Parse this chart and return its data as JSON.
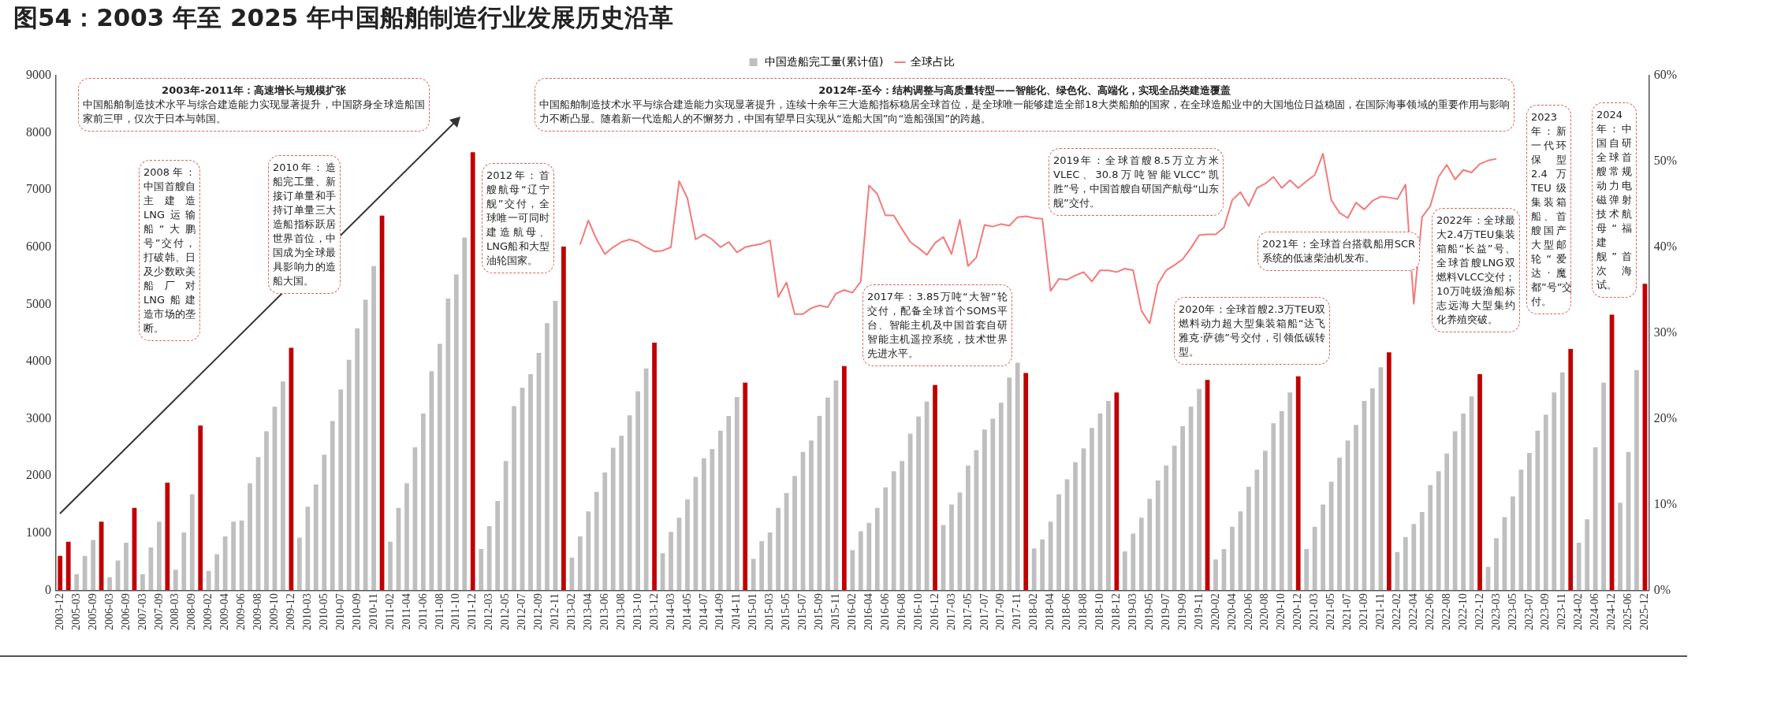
{
  "chart_data": {
    "type": "bar",
    "title": "图54：2003 年至 2025 年中国船舶制造行业发展历史沿革",
    "categories": [
      "2003-12",
      null,
      "2005-03",
      null,
      "2005-09",
      null,
      "2006-03",
      null,
      "2006-09",
      null,
      "2007-03",
      null,
      "2007-09",
      null,
      "2008-03",
      null,
      "2008-09",
      null,
      "2009-02",
      null,
      "2009-04",
      null,
      "2009-06",
      null,
      "2009-08",
      null,
      "2009-10",
      null,
      "2009-12",
      null,
      "2010-03",
      null,
      "2010-05",
      null,
      "2010-07",
      null,
      "2010-09",
      null,
      "2010-11",
      null,
      "2011-02",
      null,
      "2011-04",
      null,
      "2011-06",
      null,
      "2011-08",
      null,
      "2011-10",
      null,
      "2011-12",
      null,
      "2012-03",
      null,
      "2012-05",
      null,
      "2012-07",
      null,
      "2012-09",
      null,
      "2012-11",
      null,
      "2013-02",
      null,
      "2013-04",
      null,
      "2013-06",
      null,
      "2013-08",
      null,
      "2013-10",
      null,
      "2013-12",
      null,
      "2014-03",
      null,
      "2014-05",
      null,
      "2014-07",
      null,
      "2014-09",
      null,
      "2014-11",
      null,
      "2015-01",
      null,
      "2015-03",
      null,
      "2015-05",
      null,
      "2015-07",
      null,
      "2015-09",
      null,
      "2015-11",
      null,
      "2016-02",
      null,
      "2016-04",
      null,
      "2016-06",
      null,
      "2016-08",
      null,
      "2016-10",
      null,
      "2016-12",
      null,
      "2017-03",
      null,
      "2017-05",
      null,
      "2017-07",
      null,
      "2017-09",
      null,
      "2017-11",
      null,
      "2018-02",
      null,
      "2018-04",
      null,
      "2018-06",
      null,
      "2018-08",
      null,
      "2018-10",
      null,
      "2018-12",
      null,
      "2019-03",
      null,
      "2019-05",
      null,
      "2019-07",
      null,
      "2019-09",
      null,
      "2019-11",
      null,
      "2020-02",
      null,
      "2020-04",
      null,
      "2020-06",
      null,
      "2020-08",
      null,
      "2020-10",
      null,
      "2020-12",
      null,
      "2021-03",
      null,
      "2021-05",
      null,
      "2021-07",
      null,
      "2021-09",
      null,
      "2021-11",
      null,
      "2022-02",
      null,
      "2022-04",
      null,
      "2022-06",
      null,
      "2022-08",
      null,
      "2022-10",
      null,
      "2022-12",
      null,
      "2023-03",
      null,
      "2023-05",
      null,
      "2023-07",
      null,
      "2023-09",
      null,
      "2023-11",
      null,
      "2024-02",
      null,
      "2024-06",
      null,
      "2024-12",
      null,
      "2025-06",
      null,
      "2025-12"
    ],
    "series": [
      {
        "name": "中国造船完工量(累计值)",
        "color": "#bfbfbf",
        "values": [
          600,
          850,
          280,
          600,
          880,
          1200,
          230,
          520,
          830,
          1440,
          280,
          750,
          1200,
          1880,
          360,
          1010,
          1680,
          2880,
          340,
          630,
          940,
          1200,
          1220,
          1870,
          2330,
          2780,
          3210,
          3650,
          4240,
          920,
          1460,
          1850,
          2370,
          2960,
          3510,
          4030,
          4580,
          5080,
          5670,
          6550,
          850,
          1440,
          1870,
          2500,
          3090,
          3830,
          4310,
          5100,
          5520,
          6170,
          7660,
          720,
          1120,
          1560,
          2260,
          3220,
          3540,
          3780,
          4150,
          4670,
          5060,
          6010,
          570,
          940,
          1380,
          1720,
          2060,
          2490,
          2700,
          3060,
          3480,
          3880,
          4330,
          650,
          1020,
          1270,
          1590,
          1980,
          2310,
          2470,
          2790,
          3050,
          3380,
          3630,
          550,
          860,
          1010,
          1440,
          1700,
          2000,
          2420,
          2620,
          3050,
          3370,
          3670,
          3920,
          700,
          1030,
          1180,
          1440,
          1800,
          2080,
          2260,
          2740,
          3040,
          3300,
          3590,
          1140,
          1500,
          1710,
          2180,
          2450,
          2810,
          3000,
          3280,
          3720,
          3980,
          3800,
          730,
          890,
          1200,
          1680,
          1940,
          2240,
          2480,
          2840,
          3090,
          3310,
          3460,
          680,
          990,
          1270,
          1600,
          1920,
          2180,
          2530,
          2870,
          3210,
          3520,
          3680,
          540,
          720,
          1110,
          1380,
          1810,
          2110,
          2440,
          2920,
          3130,
          3460,
          3740,
          720,
          1110,
          1500,
          1900,
          2320,
          2620,
          2890,
          3310,
          3530,
          3900,
          4160,
          670,
          930,
          1160,
          1370,
          1840,
          2080,
          2390,
          2780,
          3090,
          3390,
          3780,
          410,
          910,
          1280,
          1640,
          2110,
          2400,
          2790,
          3070,
          3460,
          3810,
          4220,
          830,
          1240,
          2500,
          3630,
          4820,
          1530,
          2420,
          3850,
          5360
        ],
        "colors": [
          "#c00000",
          "#c00000",
          "#bfbfbf",
          "#bfbfbf",
          "#bfbfbf",
          "#c00000",
          "#bfbfbf",
          "#bfbfbf",
          "#bfbfbf",
          "#c00000",
          "#bfbfbf",
          "#bfbfbf",
          "#bfbfbf",
          "#c00000",
          "#bfbfbf",
          "#bfbfbf",
          "#bfbfbf",
          "#c00000",
          "#bfbfbf",
          "#bfbfbf",
          "#bfbfbf",
          "#bfbfbf",
          "#bfbfbf",
          "#bfbfbf",
          "#bfbfbf",
          "#bfbfbf",
          "#bfbfbf",
          "#bfbfbf",
          "#c00000",
          "#bfbfbf",
          "#bfbfbf",
          "#bfbfbf",
          "#bfbfbf",
          "#bfbfbf",
          "#bfbfbf",
          "#bfbfbf",
          "#bfbfbf",
          "#bfbfbf",
          "#bfbfbf",
          "#c00000",
          "#bfbfbf",
          "#bfbfbf",
          "#bfbfbf",
          "#bfbfbf",
          "#bfbfbf",
          "#bfbfbf",
          "#bfbfbf",
          "#bfbfbf",
          "#bfbfbf",
          "#bfbfbf",
          "#c00000",
          "#bfbfbf",
          "#bfbfbf",
          "#bfbfbf",
          "#bfbfbf",
          "#bfbfbf",
          "#bfbfbf",
          "#bfbfbf",
          "#bfbfbf",
          "#bfbfbf",
          "#bfbfbf",
          "#c00000",
          "#bfbfbf",
          "#bfbfbf",
          "#bfbfbf",
          "#bfbfbf",
          "#bfbfbf",
          "#bfbfbf",
          "#bfbfbf",
          "#bfbfbf",
          "#bfbfbf",
          "#bfbfbf",
          "#c00000",
          "#bfbfbf",
          "#bfbfbf",
          "#bfbfbf",
          "#bfbfbf",
          "#bfbfbf",
          "#bfbfbf",
          "#bfbfbf",
          "#bfbfbf",
          "#bfbfbf",
          "#bfbfbf",
          "#c00000",
          "#bfbfbf",
          "#bfbfbf",
          "#bfbfbf",
          "#bfbfbf",
          "#bfbfbf",
          "#bfbfbf",
          "#bfbfbf",
          "#bfbfbf",
          "#bfbfbf",
          "#bfbfbf",
          "#bfbfbf",
          "#c00000",
          "#bfbfbf",
          "#bfbfbf",
          "#bfbfbf",
          "#bfbfbf",
          "#bfbfbf",
          "#bfbfbf",
          "#bfbfbf",
          "#bfbfbf",
          "#bfbfbf",
          "#bfbfbf",
          "#c00000",
          "#bfbfbf",
          "#bfbfbf",
          "#bfbfbf",
          "#bfbfbf",
          "#bfbfbf",
          "#bfbfbf",
          "#bfbfbf",
          "#bfbfbf",
          "#bfbfbf",
          "#bfbfbf",
          "#c00000",
          "#bfbfbf",
          "#bfbfbf",
          "#bfbfbf",
          "#bfbfbf",
          "#bfbfbf",
          "#bfbfbf",
          "#bfbfbf",
          "#bfbfbf",
          "#bfbfbf",
          "#bfbfbf",
          "#c00000",
          "#bfbfbf",
          "#bfbfbf",
          "#bfbfbf",
          "#bfbfbf",
          "#bfbfbf",
          "#bfbfbf",
          "#bfbfbf",
          "#bfbfbf",
          "#bfbfbf",
          "#bfbfbf",
          "#c00000",
          "#bfbfbf",
          "#bfbfbf",
          "#bfbfbf",
          "#bfbfbf",
          "#bfbfbf",
          "#bfbfbf",
          "#bfbfbf",
          "#bfbfbf",
          "#bfbfbf",
          "#bfbfbf",
          "#c00000",
          "#bfbfbf",
          "#bfbfbf",
          "#bfbfbf",
          "#bfbfbf",
          "#bfbfbf",
          "#bfbfbf",
          "#bfbfbf",
          "#bfbfbf",
          "#bfbfbf",
          "#bfbfbf",
          "#c00000",
          "#bfbfbf",
          "#bfbfbf",
          "#bfbfbf",
          "#bfbfbf",
          "#bfbfbf",
          "#bfbfbf",
          "#bfbfbf",
          "#bfbfbf",
          "#bfbfbf",
          "#bfbfbf",
          "#c00000",
          "#bfbfbf",
          "#bfbfbf",
          "#bfbfbf",
          "#bfbfbf",
          "#bfbfbf",
          "#bfbfbf",
          "#bfbfbf",
          "#bfbfbf",
          "#bfbfbf",
          "#bfbfbf",
          "#c00000",
          "#bfbfbf",
          "#bfbfbf",
          "#bfbfbf",
          "#bfbfbf",
          "#c00000",
          "#bfbfbf",
          "#bfbfbf",
          "#bfbfbf",
          "#c00000"
        ]
      },
      {
        "name": "全球占比",
        "type": "line",
        "axis": "y2",
        "color": "#f47a7a",
        "values": [
          null,
          null,
          null,
          null,
          null,
          null,
          null,
          null,
          null,
          null,
          null,
          null,
          null,
          null,
          null,
          null,
          null,
          null,
          null,
          null,
          null,
          null,
          null,
          null,
          null,
          null,
          null,
          null,
          null,
          null,
          null,
          null,
          null,
          null,
          null,
          null,
          null,
          null,
          null,
          null,
          null,
          null,
          null,
          null,
          null,
          null,
          null,
          null,
          null,
          null,
          null,
          null,
          null,
          null,
          null,
          null,
          null,
          null,
          null,
          null,
          null,
          null,
          null,
          40.3,
          43.1,
          40.9,
          39.2,
          40.0,
          40.6,
          40.9,
          40.6,
          40.0,
          39.5,
          39.6,
          40.0,
          47.7,
          45.7,
          40.9,
          41.5,
          40.9,
          40.0,
          40.6,
          39.4,
          40.0,
          40.2,
          40.4,
          40.8,
          34.2,
          35.9,
          32.2,
          32.2,
          32.9,
          33.2,
          33.0,
          34.6,
          35.0,
          34.7,
          36.0,
          47.2,
          46.2,
          43.7,
          43.7,
          42.1,
          40.6,
          39.9,
          39.1,
          40.5,
          41.2,
          39.2,
          43.2,
          37.8,
          38.8,
          42.6,
          42.4,
          42.7,
          42.5,
          43.5,
          43.6,
          43.4,
          43.3,
          34.9,
          36.3,
          36.2,
          36.7,
          37.1,
          36.0,
          37.3,
          37.3,
          37.1,
          37.5,
          37.3,
          32.6,
          31.1,
          35.7,
          37.3,
          37.9,
          38.6,
          39.9,
          41.4,
          41.5,
          41.5,
          42.3,
          45.5,
          46.4,
          44.8,
          46.9,
          47.4,
          48.2,
          46.9,
          47.8,
          46.9,
          47.7,
          48.4,
          50.9,
          45.5,
          44.0,
          43.4,
          45.2,
          44.4,
          45.4,
          45.9,
          45.8,
          45.6,
          47.3,
          33.4,
          43.5,
          44.8,
          48.2,
          49.6,
          47.9,
          49.0,
          48.7,
          49.7,
          50.1,
          50.3,
          null,
          null,
          null,
          null,
          null,
          null,
          null,
          null,
          null,
          null,
          null,
          null,
          null,
          null,
          null,
          null,
          null,
          null
        ]
      }
    ],
    "ylim": [
      0,
      9000
    ],
    "yticks": [
      0,
      1000,
      2000,
      3000,
      4000,
      5000,
      6000,
      7000,
      8000,
      9000
    ],
    "y2lim": [
      0,
      60
    ],
    "y2ticks": [
      {
        "value": 0,
        "label": "0%"
      },
      {
        "value": 10,
        "label": "10%"
      },
      {
        "value": 20,
        "label": "20%"
      },
      {
        "value": 30,
        "label": "30%"
      },
      {
        "value": 40,
        "label": "40%"
      },
      {
        "value": 50,
        "label": "50%"
      },
      {
        "value": 60,
        "label": "60%"
      }
    ],
    "legend": "top",
    "marker": "none",
    "line_style": "solid",
    "annotations": [
      "2003年-2011年：高速增长与规模扩张",
      "中国船舶制造技术水平与综合建造能力实现显著提升，中国跻身全球造船国家前三甲，仅次于日本与韩国。",
      "2008年：中国首艘自主建造LNG运输船“大鹏号”交付，打破韩、日及少数欧美船厂对LNG船建造市场的垄断。",
      "2010年：造船完工量、新接订单量和手持订单量三大造船指标跃居世界首位，中国成为全球最具影响力的造船大国。",
      "2012年：首艘航母“辽宁舰”交付，全球唯一可同时建造航母、LNG船和大型油轮国家。",
      "2012年-至今：结构调整与高质量转型——智能化、绿色化、高端化，实现全品类建造覆盖",
      "中国船舶制造技术水平与综合建造能力实现显著提升，连续十余年三大造船指标稳居全球首位，是全球唯一能够建造全部18大类船舶的国家，在全球造船业中的大国地位日益稳固，在国际海事领域的重要作用与影响力不断凸显。随着新一代造船人的不懈努力，中国有望早日实现从“造船大国”向“造船强国”的跨越。",
      "2017年：3.85万吨“大智”轮交付，配备全球首个SOMS平台、智能主机及中国首套自研智能主机遥控系统，技术世界先进水平。",
      "2019年：全球首艘8.5万立方米VLEC、30.8万吨智能VLCC“凯胜”号，中国首艘自研国产航母“山东舰”交付。",
      "2020年：全球首艘2.3万TEU双燃料动力超大型集装箱船“达飞雅克·萨德”号交付，引领低碳转型。",
      "2021年：全球首台搭载船用SCR系统的低速柴油机发布。",
      "2022年：全球最大2.4万TEU集装箱船“长益”号、全球首艘LNG双燃料VLCC交付；10万吨级渔船标志远海大型集约化养殖突破。",
      "2023年：新一代环保型2.4万TEU级集装箱船、首艘国产大型邮轮“爱达·魔都”号”交付。",
      "2024年：中国自研全球首艘常规动力电磁弹射技术航母“福建舰”首次海试。"
    ]
  }
}
